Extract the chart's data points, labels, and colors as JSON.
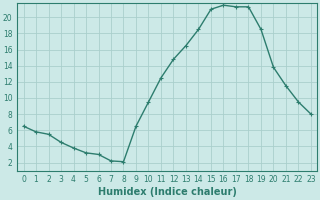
{
  "x": [
    0,
    1,
    2,
    3,
    4,
    5,
    6,
    7,
    8,
    9,
    10,
    11,
    12,
    13,
    14,
    15,
    16,
    17,
    18,
    19,
    20,
    21,
    22,
    23
  ],
  "y": [
    6.5,
    5.8,
    5.5,
    4.5,
    3.8,
    3.2,
    3.0,
    2.2,
    2.1,
    6.5,
    9.5,
    12.5,
    14.8,
    16.5,
    18.5,
    21.0,
    21.5,
    21.3,
    21.3,
    18.5,
    13.8,
    11.5,
    9.5,
    8.0
  ],
  "line_color": "#2d7d6e",
  "marker": "P",
  "marker_size": 2.5,
  "bg_color": "#cce9e7",
  "grid_color": "#aacfcc",
  "xlabel": "Humidex (Indice chaleur)",
  "xlim": [
    -0.5,
    23.5
  ],
  "ylim": [
    1.0,
    21.8
  ],
  "yticks": [
    2,
    4,
    6,
    8,
    10,
    12,
    14,
    16,
    18,
    20
  ],
  "xticks": [
    0,
    1,
    2,
    3,
    4,
    5,
    6,
    7,
    8,
    9,
    10,
    11,
    12,
    13,
    14,
    15,
    16,
    17,
    18,
    19,
    20,
    21,
    22,
    23
  ],
  "tick_fontsize": 5.5,
  "xlabel_fontsize": 7,
  "text_color": "#2d7d6e",
  "linewidth": 1.0
}
